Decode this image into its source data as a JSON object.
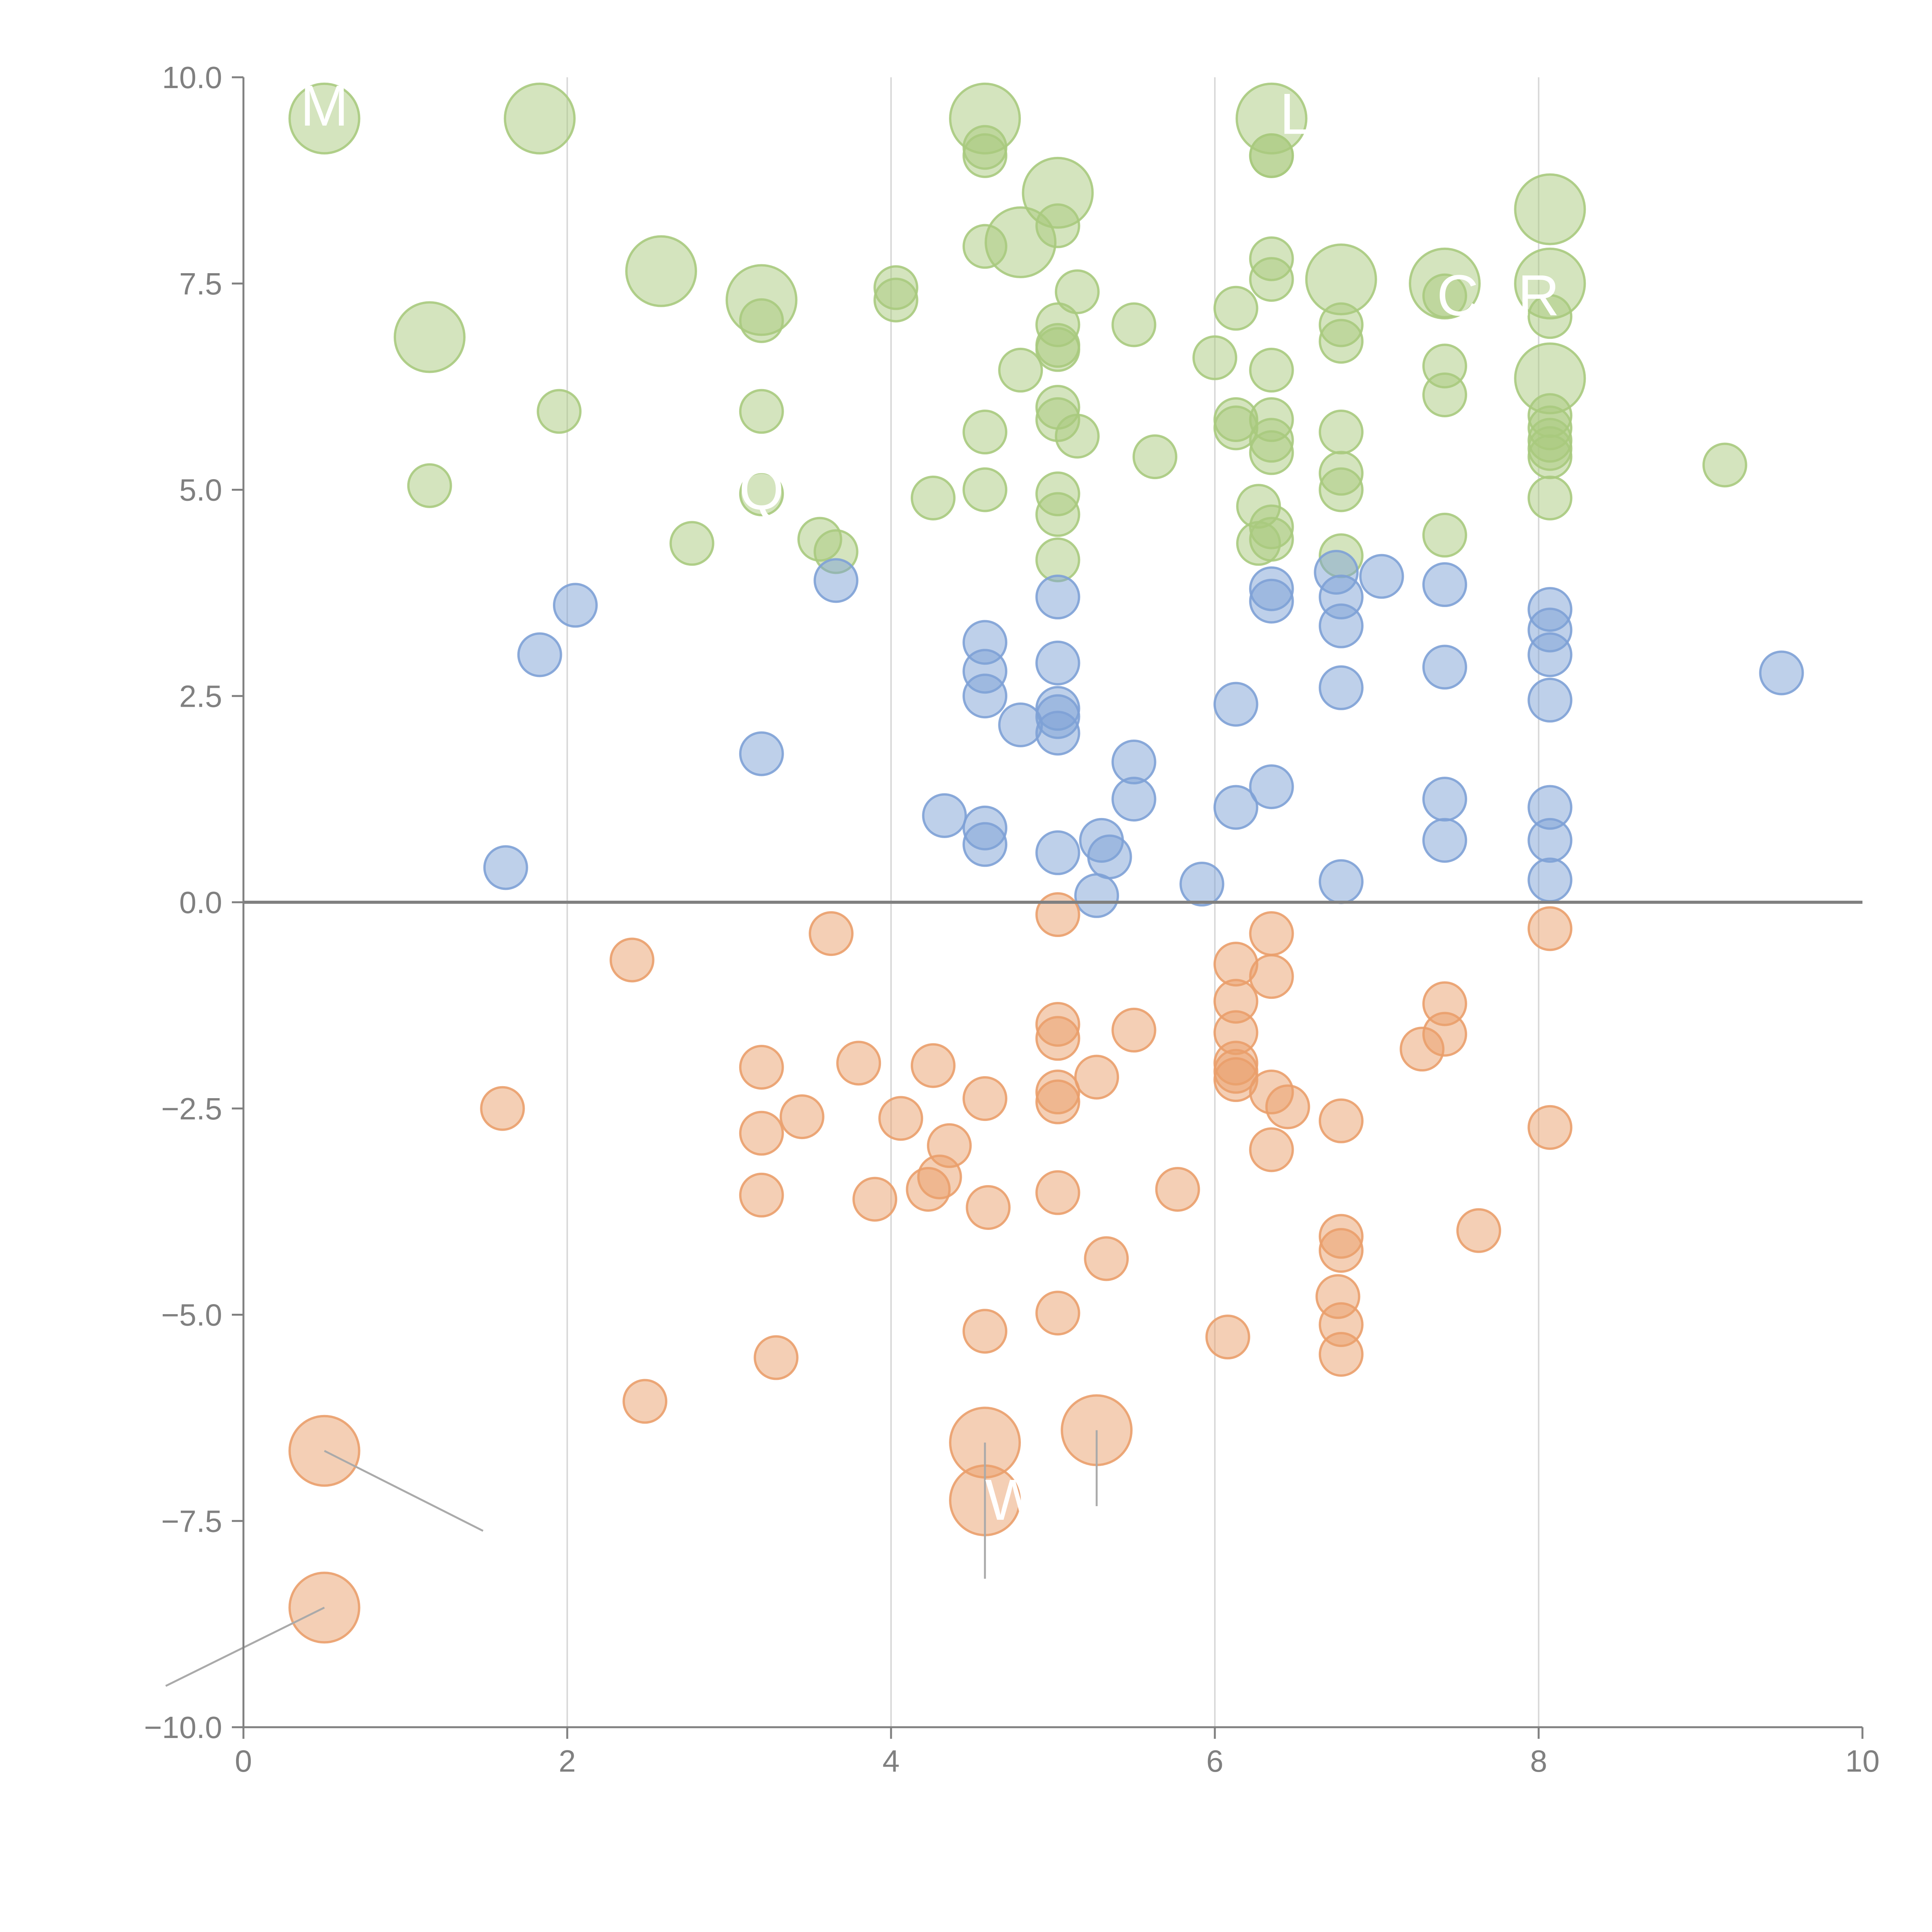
{
  "chart_data": {
    "type": "scatter",
    "title": "",
    "xlabel": "",
    "ylabel": "",
    "xlim": [
      0,
      10
    ],
    "ylim": [
      -10,
      10
    ],
    "x_ticks": [
      "0",
      "2",
      "4",
      "6",
      "8",
      "10"
    ],
    "y_ticks": [
      "10.0",
      "7.5",
      "5.0",
      "2.5",
      "0.0",
      "−2.5",
      "−5.0",
      "−7.5",
      "−10.0"
    ],
    "grid": "vertical lines at x = 2, 4, 6, 8",
    "colors": {
      "green": "#a9ca7e",
      "blue": "#7ea1d6",
      "orange": "#ea9f6b",
      "axis": "#808080",
      "gridline": "#d9d9d9",
      "label_text": "#ffffff",
      "leader_line": "#aaaaaa"
    },
    "series": [
      {
        "name": "green",
        "points": [
          [
            0.5,
            9.5,
            2
          ],
          [
            1.83,
            9.5,
            2
          ],
          [
            4.58,
            9.5,
            2
          ],
          [
            6.35,
            9.5,
            2
          ],
          [
            4.58,
            9.05,
            1
          ],
          [
            4.58,
            9.15,
            1
          ],
          [
            6.35,
            9.05,
            1
          ],
          [
            6.35,
            9.05,
            1
          ],
          [
            5.03,
            8.6,
            2
          ],
          [
            8.07,
            8.4,
            2
          ],
          [
            4.8,
            8.0,
            2
          ],
          [
            5.03,
            8.2,
            1
          ],
          [
            4.58,
            7.95,
            1
          ],
          [
            6.35,
            7.8,
            1
          ],
          [
            6.35,
            7.55,
            1
          ],
          [
            2.58,
            7.65,
            2
          ],
          [
            3.2,
            7.3,
            2
          ],
          [
            6.78,
            7.55,
            2
          ],
          [
            7.42,
            7.5,
            2
          ],
          [
            8.07,
            7.5,
            2
          ],
          [
            4.03,
            7.45,
            1
          ],
          [
            4.03,
            7.3,
            1
          ],
          [
            5.15,
            7.4,
            1
          ],
          [
            7.42,
            7.35,
            1
          ],
          [
            6.13,
            7.2,
            1
          ],
          [
            8.07,
            7.1,
            1
          ],
          [
            3.2,
            7.05,
            1
          ],
          [
            5.03,
            7.0,
            1
          ],
          [
            5.5,
            7.0,
            1
          ],
          [
            6.78,
            7.0,
            1
          ],
          [
            1.15,
            6.85,
            2
          ],
          [
            6.78,
            6.8,
            1
          ],
          [
            5.03,
            6.75,
            1
          ],
          [
            5.03,
            6.7,
            1
          ],
          [
            6.0,
            6.6,
            1
          ],
          [
            4.8,
            6.45,
            1
          ],
          [
            6.35,
            6.45,
            1
          ],
          [
            7.42,
            6.5,
            1
          ],
          [
            8.07,
            6.35,
            2
          ],
          [
            7.42,
            6.15,
            1
          ],
          [
            1.95,
            5.95,
            1
          ],
          [
            3.2,
            5.95,
            1
          ],
          [
            5.03,
            6.0,
            1
          ],
          [
            8.07,
            5.9,
            1
          ],
          [
            5.03,
            5.85,
            1
          ],
          [
            6.13,
            5.85,
            1
          ],
          [
            6.35,
            5.85,
            1
          ],
          [
            6.13,
            5.75,
            1
          ],
          [
            8.07,
            5.75,
            1
          ],
          [
            4.58,
            5.7,
            1
          ],
          [
            6.78,
            5.7,
            1
          ],
          [
            5.15,
            5.65,
            1
          ],
          [
            8.07,
            5.6,
            1
          ],
          [
            6.35,
            5.6,
            1
          ],
          [
            8.07,
            5.5,
            1
          ],
          [
            6.35,
            5.45,
            1
          ],
          [
            5.63,
            5.4,
            1
          ],
          [
            8.07,
            5.4,
            1
          ],
          [
            9.15,
            5.3,
            1
          ],
          [
            6.78,
            5.2,
            1
          ],
          [
            1.15,
            5.05,
            1
          ],
          [
            4.58,
            5.0,
            1
          ],
          [
            6.78,
            5.0,
            1
          ],
          [
            3.2,
            4.95,
            1
          ],
          [
            5.03,
            4.95,
            1
          ],
          [
            4.26,
            4.9,
            1
          ],
          [
            8.07,
            4.9,
            1
          ],
          [
            6.27,
            4.8,
            1
          ],
          [
            5.03,
            4.7,
            1
          ],
          [
            6.35,
            4.55,
            1
          ],
          [
            3.56,
            4.4,
            1
          ],
          [
            7.42,
            4.45,
            1
          ],
          [
            6.35,
            4.4,
            1
          ],
          [
            6.27,
            4.35,
            1
          ],
          [
            2.77,
            4.35,
            1
          ],
          [
            3.66,
            4.25,
            1
          ],
          [
            6.78,
            4.2,
            1
          ],
          [
            5.03,
            4.15,
            1
          ]
        ]
      },
      {
        "name": "blue",
        "points": [
          [
            3.66,
            3.9,
            1
          ],
          [
            6.75,
            4.0,
            1
          ],
          [
            7.03,
            3.95,
            1
          ],
          [
            6.35,
            3.8,
            1
          ],
          [
            7.42,
            3.85,
            1
          ],
          [
            5.03,
            3.7,
            1
          ],
          [
            6.78,
            3.7,
            1
          ],
          [
            6.35,
            3.65,
            1
          ],
          [
            2.05,
            3.6,
            1
          ],
          [
            8.07,
            3.55,
            1
          ],
          [
            6.78,
            3.35,
            1
          ],
          [
            8.07,
            3.3,
            1
          ],
          [
            4.58,
            3.15,
            1
          ],
          [
            1.83,
            3.0,
            1
          ],
          [
            8.07,
            3.0,
            1
          ],
          [
            5.03,
            2.9,
            1
          ],
          [
            7.42,
            2.85,
            1
          ],
          [
            4.58,
            2.8,
            1
          ],
          [
            9.5,
            2.78,
            1
          ],
          [
            6.78,
            2.6,
            1
          ],
          [
            4.58,
            2.5,
            1
          ],
          [
            8.07,
            2.45,
            1
          ],
          [
            6.13,
            2.4,
            1
          ],
          [
            5.03,
            2.35,
            1
          ],
          [
            5.03,
            2.25,
            1
          ],
          [
            4.8,
            2.15,
            1
          ],
          [
            5.03,
            2.05,
            1
          ],
          [
            3.2,
            1.8,
            1
          ],
          [
            5.5,
            1.7,
            1
          ],
          [
            6.35,
            1.4,
            1
          ],
          [
            7.42,
            1.25,
            1
          ],
          [
            5.5,
            1.25,
            1
          ],
          [
            6.13,
            1.15,
            1
          ],
          [
            8.07,
            1.15,
            1
          ],
          [
            4.33,
            1.05,
            1
          ],
          [
            4.58,
            0.9,
            1
          ],
          [
            7.42,
            0.75,
            1
          ],
          [
            8.07,
            0.75,
            1
          ],
          [
            5.3,
            0.75,
            1
          ],
          [
            4.58,
            0.7,
            1
          ],
          [
            5.03,
            0.6,
            1
          ],
          [
            5.35,
            0.55,
            1
          ],
          [
            1.62,
            0.42,
            1
          ],
          [
            6.78,
            0.25,
            1
          ],
          [
            8.07,
            0.27,
            1
          ],
          [
            5.92,
            0.22,
            1
          ],
          [
            5.27,
            0.08,
            1
          ]
        ]
      },
      {
        "name": "orange",
        "points": [
          [
            5.03,
            -0.15,
            1
          ],
          [
            3.63,
            -0.38,
            1
          ],
          [
            6.35,
            -0.38,
            1
          ],
          [
            8.07,
            -0.32,
            1
          ],
          [
            2.4,
            -0.7,
            1
          ],
          [
            6.13,
            -0.75,
            1
          ],
          [
            6.35,
            -0.9,
            1
          ],
          [
            7.42,
            -1.23,
            1
          ],
          [
            6.13,
            -1.2,
            1
          ],
          [
            5.03,
            -1.48,
            1
          ],
          [
            5.5,
            -1.55,
            1
          ],
          [
            6.13,
            -1.58,
            1
          ],
          [
            7.42,
            -1.6,
            1
          ],
          [
            5.03,
            -1.65,
            1
          ],
          [
            7.28,
            -1.78,
            1
          ],
          [
            3.8,
            -1.95,
            1
          ],
          [
            4.26,
            -1.98,
            1
          ],
          [
            3.2,
            -2.0,
            1
          ],
          [
            6.13,
            -1.95,
            1
          ],
          [
            6.13,
            -2.05,
            1
          ],
          [
            6.13,
            -2.15,
            1
          ],
          [
            5.27,
            -2.12,
            1
          ],
          [
            5.03,
            -2.3,
            1
          ],
          [
            6.35,
            -2.3,
            1
          ],
          [
            4.58,
            -2.38,
            1
          ],
          [
            5.03,
            -2.42,
            1
          ],
          [
            6.45,
            -2.48,
            1
          ],
          [
            1.6,
            -2.5,
            1
          ],
          [
            3.45,
            -2.6,
            1
          ],
          [
            4.06,
            -2.62,
            1
          ],
          [
            6.78,
            -2.65,
            1
          ],
          [
            8.07,
            -2.73,
            1
          ],
          [
            3.2,
            -2.8,
            1
          ],
          [
            4.36,
            -2.95,
            1
          ],
          [
            6.35,
            -3.0,
            1
          ],
          [
            4.3,
            -3.33,
            1
          ],
          [
            4.23,
            -3.48,
            1
          ],
          [
            5.77,
            -3.48,
            1
          ],
          [
            5.03,
            -3.52,
            1
          ],
          [
            3.2,
            -3.55,
            1
          ],
          [
            3.9,
            -3.6,
            1
          ],
          [
            4.6,
            -3.7,
            1
          ],
          [
            7.63,
            -3.98,
            1
          ],
          [
            6.78,
            -4.05,
            1
          ],
          [
            6.78,
            -4.22,
            1
          ],
          [
            5.33,
            -4.32,
            1
          ],
          [
            6.76,
            -4.78,
            1
          ],
          [
            5.03,
            -4.98,
            1
          ],
          [
            6.78,
            -5.12,
            1
          ],
          [
            4.58,
            -5.2,
            1
          ],
          [
            6.08,
            -5.27,
            1
          ],
          [
            6.78,
            -5.48,
            1
          ],
          [
            3.29,
            -5.52,
            1
          ],
          [
            2.48,
            -6.05,
            1
          ],
          [
            0.5,
            -6.65,
            2
          ],
          [
            4.58,
            -6.55,
            2
          ],
          [
            5.27,
            -6.4,
            2
          ],
          [
            4.58,
            -7.25,
            2
          ],
          [
            0.5,
            -8.55,
            2
          ]
        ]
      }
    ],
    "labels": [
      {
        "text": "M",
        "x": 0.5,
        "y": 9.6
      },
      {
        "text": "L",
        "x": 6.5,
        "y": 9.5
      },
      {
        "text": "C",
        "x": 7.5,
        "y": 7.3
      },
      {
        "text": "R",
        "x": 8.0,
        "y": 7.3
      },
      {
        "text": "Q",
        "x": 3.2,
        "y": 4.95
      },
      {
        "text": "W",
        "x": 4.75,
        "y": -7.3
      }
    ]
  }
}
